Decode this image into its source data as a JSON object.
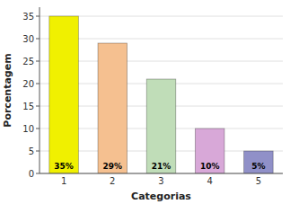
{
  "chart_data": {
    "type": "bar",
    "categories": [
      "1",
      "2",
      "3",
      "4",
      "5"
    ],
    "values": [
      35,
      29,
      21,
      10,
      5
    ],
    "value_labels": [
      "35%",
      "29%",
      "21%",
      "10%",
      "5%"
    ],
    "colors": [
      "#f0f000",
      "#f5c090",
      "#c0ddb8",
      "#d8a8d8",
      "#9090c8"
    ],
    "xlabel": "Categorias",
    "ylabel": "Porcentagem",
    "ylim": [
      0,
      37
    ],
    "yticks": [
      0,
      5,
      10,
      15,
      20,
      25,
      30,
      35
    ],
    "grid": true,
    "data_labels": true
  }
}
